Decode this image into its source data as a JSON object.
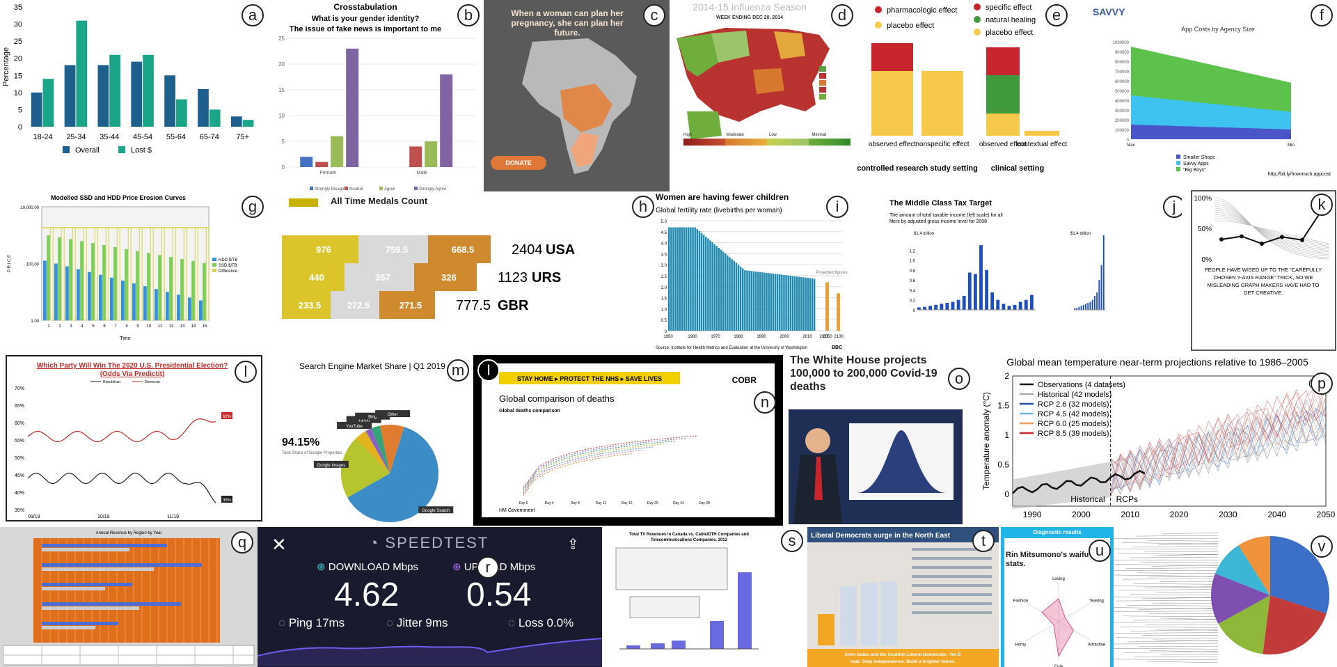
{
  "labels": [
    "a",
    "b",
    "c",
    "d",
    "e",
    "f",
    "g",
    "h",
    "i",
    "j",
    "k",
    "l",
    "m",
    "n",
    "o",
    "p",
    "q",
    "r",
    "s",
    "t",
    "u",
    "v"
  ],
  "chart_data": [
    {
      "id": "a",
      "type": "bar",
      "categories": [
        "18-24",
        "25-34",
        "35-44",
        "45-54",
        "55-64",
        "65-74",
        "75+"
      ],
      "series": [
        {
          "name": "Overall",
          "values": [
            10,
            18,
            18,
            19,
            15,
            11,
            3
          ],
          "color": "#1f5f8b"
        },
        {
          "name": "Lost $",
          "values": [
            14,
            31,
            21,
            21,
            8,
            5,
            2
          ],
          "color": "#1aa589"
        }
      ],
      "ylabel": "Percentage",
      "yticks": [
        "0",
        "5",
        "10",
        "15",
        "20",
        "25",
        "30",
        "35"
      ],
      "ylim": [
        0,
        35
      ]
    },
    {
      "id": "b",
      "type": "bar",
      "title": "Crosstabulation",
      "subtitle": "What is your gender identity?",
      "subtitle2": "The issue of fake news is important to me",
      "categories": [
        "Female",
        "Male"
      ],
      "series": [
        {
          "name": "Strongly Disagree",
          "values": [
            2,
            0
          ],
          "color": "#4472c4"
        },
        {
          "name": "Neutral",
          "values": [
            1,
            4
          ],
          "color": "#c0504d"
        },
        {
          "name": "Agree",
          "values": [
            6,
            5
          ],
          "color": "#9bbb59"
        },
        {
          "name": "Strongly Agree",
          "values": [
            23,
            18
          ],
          "color": "#8064a2"
        }
      ],
      "yticks": [
        "0",
        "5",
        "10",
        "15",
        "20",
        "25"
      ],
      "ylim": [
        0,
        25
      ]
    },
    {
      "id": "c",
      "type": "other",
      "headline": "When a woman can plan her pregnancy, she can plan her future.",
      "button": "DONATE"
    },
    {
      "id": "d",
      "type": "other",
      "title": "2014-15 Influenza Season",
      "subtitle": "WEEK ENDING DEC 20, 2014",
      "legend": [
        "High",
        "Moderate",
        "Low",
        "Minimal"
      ]
    },
    {
      "id": "e",
      "type": "bar",
      "legend_left": [
        "pharmacologic effect",
        "placebo effect"
      ],
      "legend_right": [
        "specific effect",
        "natural healing",
        "placebo effect"
      ],
      "left_categories": [
        "observed effect",
        "nonspecific effect"
      ],
      "right_categories": [
        "observed effect",
        "contextual effect"
      ],
      "left_caption": "controlled research study setting",
      "right_caption": "clinical setting"
    },
    {
      "id": "f",
      "type": "area",
      "logo": "SAVVY",
      "title": "App Costs by Agency Size",
      "categories": [
        "Max",
        "Min"
      ],
      "yticks": [
        "0",
        "100000",
        "200000",
        "300000",
        "400000",
        "500000",
        "600000",
        "700000",
        "800000",
        "900000",
        "1000000"
      ],
      "series": [
        {
          "name": "Smaller Shops",
          "values": [
            150000,
            100000
          ],
          "color": "#4a55c8"
        },
        {
          "name": "Savvy Apps",
          "values": [
            450000,
            280000
          ],
          "color": "#3ec3f0"
        },
        {
          "name": "\"Big Boys\"",
          "values": [
            950000,
            580000
          ],
          "color": "#5cc24b"
        }
      ],
      "source": "http://bit.ly/howmuch.appcost"
    },
    {
      "id": "g",
      "type": "bar",
      "title": "Modelled SSD and HDD Price Erosion Curves",
      "xlabel": "Time",
      "ylabel": "P R I C E",
      "yticks": [
        "1.00",
        "100.00",
        "10,000.00"
      ],
      "categories": [
        "1",
        "2",
        "3",
        "4",
        "5",
        "6",
        "7",
        "8",
        "9",
        "10",
        "11",
        "12",
        "13",
        "14",
        "15"
      ],
      "legend": [
        "HDD $/TB",
        "SSD $/TB",
        "Difference"
      ]
    },
    {
      "id": "h",
      "type": "bar",
      "title": "All Time Medals Count",
      "rows": [
        {
          "country": "USA",
          "total": "2404",
          "values": [
            "976",
            "759.5",
            "668.5"
          ]
        },
        {
          "country": "URS",
          "total": "1123",
          "values": [
            "440",
            "357",
            "326"
          ]
        },
        {
          "country": "GBR",
          "total": "777.5",
          "values": [
            "233.5",
            "272.5",
            "271.5"
          ]
        }
      ]
    },
    {
      "id": "i",
      "type": "bar",
      "title": "Women are having fewer children",
      "subtitle": "Global fertility rate (livebirths per woman)",
      "yticks": [
        "0",
        "0.5",
        "1.0",
        "1.5",
        "2.0",
        "2.5",
        "3.0",
        "3.5",
        "4.0",
        "4.5",
        "5.0"
      ],
      "xticks": [
        "1950",
        "1960",
        "1970",
        "1980",
        "1990",
        "2000",
        "2010",
        "2017",
        "2050",
        "2100"
      ],
      "projected": "Projected figures",
      "source": "Source: Institute for Health Metrics and Evaluation at the University of Washington",
      "badge": "BBC"
    },
    {
      "id": "j",
      "type": "bar",
      "title": "The Middle Class Tax Target",
      "subtitle": "The amount of total taxable income (left scale) for all filers by adjusted gross income level for 2008",
      "ytop": "$1.4 trillion",
      "yticks": [
        "0",
        "0.2",
        "0.4",
        "0.6",
        "0.8",
        "1.0",
        "1.2"
      ],
      "values_left": [
        0.05,
        0.06,
        0.08,
        0.1,
        0.12,
        0.14,
        0.16,
        0.2,
        0.28,
        0.75,
        0.72,
        1.3,
        0.8,
        0.35,
        0.2,
        0.12,
        0.08,
        0.1,
        0.16,
        0.2,
        0.3
      ],
      "values_right": [
        0.03,
        0.04,
        0.06,
        0.08,
        0.1,
        0.12,
        0.14,
        0.16,
        0.2,
        0.28,
        0.35,
        0.6,
        0.9,
        1.5
      ]
    },
    {
      "id": "k",
      "type": "line",
      "yticks": [
        "0%",
        "50%",
        "100%"
      ],
      "values": [
        32,
        37,
        25,
        36,
        31,
        81
      ],
      "caption": "PEOPLE HAVE WISED UP TO THE \"CAREFULLY CHOSEN Y-AXIS RANGE\" TRICK, SO WE MISLEADING GRAPH MAKERS HAVE HAD TO GET CREATIVE."
    },
    {
      "id": "l",
      "type": "line",
      "title": "Which Party Will Win The 2020 U.S. Presidential Election? (Odds Via Predictit)",
      "yticks": [
        "35%",
        "40%",
        "45%",
        "50%",
        "55%",
        "60%",
        "65%",
        "70%"
      ],
      "xticks": [
        "09/19",
        "10/19",
        "11/19"
      ],
      "series": [
        {
          "name": "Republican",
          "color": "#222222",
          "end": "35%"
        },
        {
          "name": "Democrat",
          "color": "#c22b2b",
          "end": "62%"
        }
      ]
    },
    {
      "id": "m",
      "type": "pie",
      "title": "Search Engine Market Share | Q1 2019",
      "big": "94.15%",
      "big_sub": "Total Share of Google Properties",
      "slices": [
        {
          "label": "Google Search",
          "value": 62,
          "color": "#3c8dc5"
        },
        {
          "label": "Google Images",
          "value": 21,
          "color": "#b6c42d"
        },
        {
          "label": "YouTube",
          "value": 4,
          "color": "#e2b31b"
        },
        {
          "label": "Yahoo",
          "value": 2,
          "color": "#8b5fbf"
        },
        {
          "label": "Bing",
          "value": 3,
          "color": "#33a37a"
        },
        {
          "label": "Other",
          "value": 8,
          "color": "#e07c30"
        }
      ]
    },
    {
      "id": "n",
      "type": "line",
      "banner": "STAY HOME ▸ PROTECT THE NHS ▸ SAVE LIVES",
      "title": "Global comparison of deaths",
      "subtitle": "Global deaths comparison",
      "org": "COBR",
      "footer": "HM Government",
      "xticks": [
        "Day 0",
        "Day 4",
        "Day 8",
        "Day 12",
        "Day 16",
        "Day 20",
        "Day 24",
        "Day 28"
      ]
    },
    {
      "id": "o",
      "type": "other",
      "headline": "The White House projects 100,000 to 200,000 Covid-19 deaths"
    },
    {
      "id": "p",
      "type": "line",
      "title": "Global mean temperature near-term projections relative to 1986–2005",
      "tag": "(a)",
      "ylabel": "Temperature anomaly (°C)",
      "yticks": [
        "0",
        "0.5",
        "1",
        "1.5",
        "2"
      ],
      "xticks": [
        "1990",
        "2000",
        "2010",
        "2020",
        "2030",
        "2040",
        "2050"
      ],
      "legend": [
        {
          "name": "Observations (4 datasets)",
          "color": "#111111"
        },
        {
          "name": "Historical (42 models)",
          "color": "#aaaaaa"
        },
        {
          "name": "RCP 2.6 (32 models)",
          "color": "#1f4fa8"
        },
        {
          "name": "RCP 4.5 (42 models)",
          "color": "#6bb3e0"
        },
        {
          "name": "RCP 6.0 (25 models)",
          "color": "#f09a5a"
        },
        {
          "name": "RCP 8.5 (39 models)",
          "color": "#c8262d"
        }
      ],
      "annot_left": "Historical",
      "annot_right": "RCPs"
    },
    {
      "id": "q",
      "type": "bar",
      "title": "Annual Revenue by Region by Year"
    },
    {
      "id": "r",
      "type": "other",
      "brand": "SPEEDTEST",
      "download_label": "DOWNLOAD Mbps",
      "upload_label": "UPLOAD Mbps",
      "download": "4.62",
      "upload": "0.54",
      "ping_label": "Ping",
      "ping": "17ms",
      "jitter_label": "Jitter",
      "jitter": "9ms",
      "loss_label": "Loss",
      "loss": "0.0%"
    },
    {
      "id": "s",
      "type": "bar",
      "title": "Total TV Revenues in Canada vs. Cable/DTH Companies and Telecommunications Companies, 2012"
    },
    {
      "id": "t",
      "type": "bar",
      "title": "Liberal Democrats surge in the North East",
      "footer": "John Gates and the Scottish Liberal Democrats - No Break. Stop Independence. Build a brighter future."
    },
    {
      "id": "u",
      "type": "other",
      "header": "Diagnostic results",
      "title": "Rin Mitsumono's waifu stats.",
      "axes": [
        "Loving",
        "Teasing",
        "Attractive",
        "Cute",
        "Horny",
        "Fashion"
      ]
    },
    {
      "id": "v",
      "type": "pie",
      "slices": [
        {
          "value": 30,
          "color": "#3b6fc8"
        },
        {
          "value": 22,
          "color": "#c23b3b"
        },
        {
          "value": 15,
          "color": "#8fb83a"
        },
        {
          "value": 14,
          "color": "#7c4fb0"
        },
        {
          "value": 10,
          "color": "#3cb6d4"
        },
        {
          "value": 9,
          "color": "#f0923a"
        }
      ]
    }
  ]
}
